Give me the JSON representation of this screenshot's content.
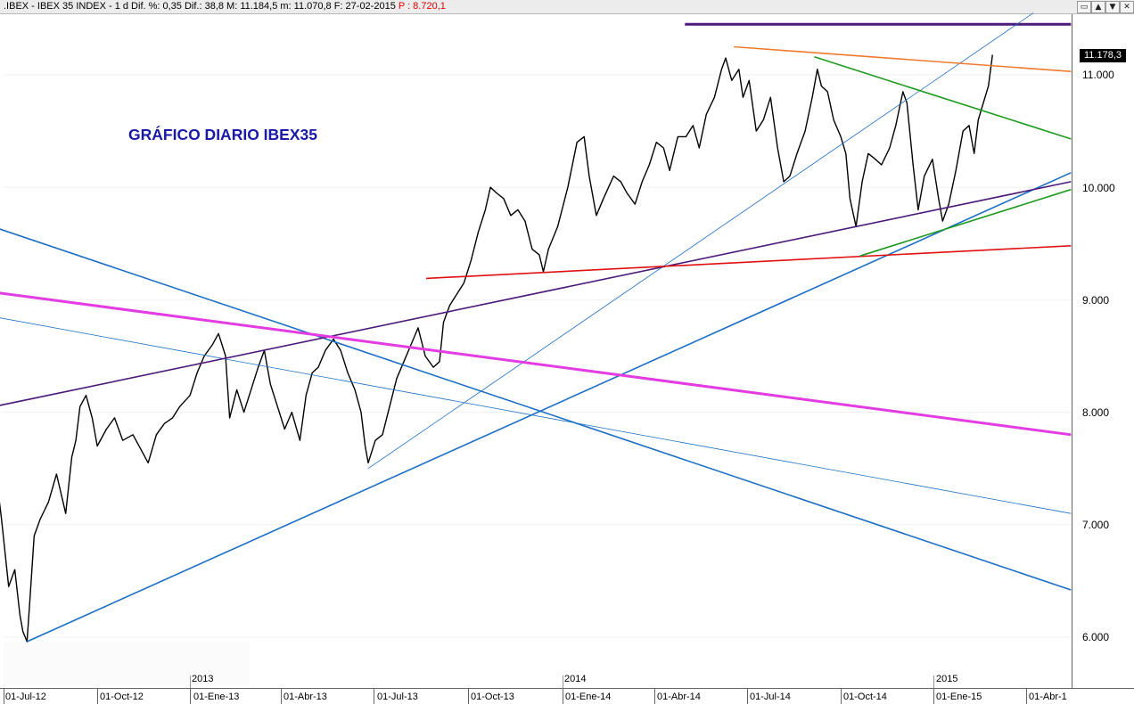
{
  "window": {
    "title": ".IBEX - IBEX 35 INDEX -  1 d Dif. %: 0,35  Dif.: 38,8  M: 11.184,5  m: 11.070,8  F: 27-02-2015",
    "title_extra": " P : 8.720,1",
    "buttons": [
      "▭",
      "▲",
      "▼",
      "✕"
    ]
  },
  "chart_data": {
    "type": "line",
    "title": "",
    "note": "GRÁFICO DIARIO IBEX35",
    "last_price": "11.178,3",
    "colors": {
      "price": "#000000",
      "blue": "#1c6fc4",
      "purple": "#4b1a7a",
      "magenta": "#e23ce2",
      "red": "#e01010",
      "green": "#1e9a1e",
      "orange": "#f07a30",
      "note": "#1a1aa8"
    },
    "y_ticks": [
      "11.000",
      "10.000",
      "9.000",
      "8.000",
      "7.000",
      "6.000"
    ],
    "x_ticks": [
      "01-Jul-12",
      "01-Oct-12",
      "01-Ene-13",
      "01-Abr-13",
      "01-Jul-13",
      "01-Oct-13",
      "01-Ene-14",
      "01-Abr-14",
      "01-Jul-14",
      "01-Oct-14",
      "01-Ene-15",
      "01-Abr-1"
    ],
    "year_labels": [
      "2013",
      "2014",
      "2015"
    ],
    "price_series": [
      [
        "2012-06-27",
        7200
      ],
      [
        "2012-06-29",
        7050
      ],
      [
        "2012-07-06",
        6450
      ],
      [
        "2012-07-12",
        6600
      ],
      [
        "2012-07-17",
        6200
      ],
      [
        "2012-07-20",
        6050
      ],
      [
        "2012-07-24",
        5960
      ],
      [
        "2012-07-27",
        6350
      ],
      [
        "2012-07-31",
        6900
      ],
      [
        "2012-08-06",
        7050
      ],
      [
        "2012-08-14",
        7200
      ],
      [
        "2012-08-22",
        7450
      ],
      [
        "2012-08-31",
        7100
      ],
      [
        "2012-09-06",
        7600
      ],
      [
        "2012-09-10",
        7750
      ],
      [
        "2012-09-14",
        8050
      ],
      [
        "2012-09-20",
        8150
      ],
      [
        "2012-09-26",
        7950
      ],
      [
        "2012-10-01",
        7700
      ],
      [
        "2012-10-10",
        7850
      ],
      [
        "2012-10-18",
        7950
      ],
      [
        "2012-10-26",
        7750
      ],
      [
        "2012-11-05",
        7800
      ],
      [
        "2012-11-14",
        7650
      ],
      [
        "2012-11-20",
        7550
      ],
      [
        "2012-11-28",
        7800
      ],
      [
        "2012-12-06",
        7900
      ],
      [
        "2012-12-14",
        7950
      ],
      [
        "2012-12-21",
        8050
      ],
      [
        "2012-12-31",
        8150
      ],
      [
        "2013-01-07",
        8350
      ],
      [
        "2013-01-14",
        8500
      ],
      [
        "2013-01-22",
        8600
      ],
      [
        "2013-01-28",
        8700
      ],
      [
        "2013-02-04",
        8500
      ],
      [
        "2013-02-08",
        7950
      ],
      [
        "2013-02-15",
        8200
      ],
      [
        "2013-02-22",
        8000
      ],
      [
        "2013-03-01",
        8200
      ],
      [
        "2013-03-08",
        8400
      ],
      [
        "2013-03-14",
        8550
      ],
      [
        "2013-03-20",
        8250
      ],
      [
        "2013-03-27",
        8050
      ],
      [
        "2013-04-03",
        7850
      ],
      [
        "2013-04-10",
        8000
      ],
      [
        "2013-04-18",
        7750
      ],
      [
        "2013-04-24",
        8150
      ],
      [
        "2013-04-30",
        8350
      ],
      [
        "2013-05-06",
        8400
      ],
      [
        "2013-05-13",
        8550
      ],
      [
        "2013-05-21",
        8650
      ],
      [
        "2013-05-28",
        8550
      ],
      [
        "2013-06-04",
        8350
      ],
      [
        "2013-06-11",
        8200
      ],
      [
        "2013-06-17",
        8000
      ],
      [
        "2013-06-21",
        7700
      ],
      [
        "2013-06-24",
        7550
      ],
      [
        "2013-07-01",
        7750
      ],
      [
        "2013-07-08",
        7800
      ],
      [
        "2013-07-15",
        8050
      ],
      [
        "2013-07-22",
        8300
      ],
      [
        "2013-07-29",
        8450
      ],
      [
        "2013-08-05",
        8600
      ],
      [
        "2013-08-12",
        8750
      ],
      [
        "2013-08-19",
        8500
      ],
      [
        "2013-08-27",
        8400
      ],
      [
        "2013-09-02",
        8450
      ],
      [
        "2013-09-06",
        8800
      ],
      [
        "2013-09-12",
        8950
      ],
      [
        "2013-09-19",
        9050
      ],
      [
        "2013-09-26",
        9150
      ],
      [
        "2013-10-03",
        9350
      ],
      [
        "2013-10-10",
        9600
      ],
      [
        "2013-10-17",
        9800
      ],
      [
        "2013-10-22",
        10000
      ],
      [
        "2013-10-28",
        9950
      ],
      [
        "2013-11-04",
        9900
      ],
      [
        "2013-11-11",
        9750
      ],
      [
        "2013-11-18",
        9800
      ],
      [
        "2013-11-25",
        9700
      ],
      [
        "2013-12-02",
        9450
      ],
      [
        "2013-12-09",
        9400
      ],
      [
        "2013-12-13",
        9250
      ],
      [
        "2013-12-18",
        9450
      ],
      [
        "2013-12-27",
        9650
      ],
      [
        "2014-01-06",
        10000
      ],
      [
        "2014-01-15",
        10400
      ],
      [
        "2014-01-22",
        10450
      ],
      [
        "2014-01-27",
        10100
      ],
      [
        "2014-02-03",
        9750
      ],
      [
        "2014-02-10",
        9900
      ],
      [
        "2014-02-20",
        10100
      ],
      [
        "2014-02-27",
        10050
      ],
      [
        "2014-03-05",
        9950
      ],
      [
        "2014-03-13",
        9850
      ],
      [
        "2014-03-20",
        10050
      ],
      [
        "2014-03-27",
        10200
      ],
      [
        "2014-04-03",
        10400
      ],
      [
        "2014-04-10",
        10350
      ],
      [
        "2014-04-16",
        10150
      ],
      [
        "2014-04-24",
        10450
      ],
      [
        "2014-05-02",
        10450
      ],
      [
        "2014-05-09",
        10550
      ],
      [
        "2014-05-15",
        10350
      ],
      [
        "2014-05-22",
        10650
      ],
      [
        "2014-05-30",
        10800
      ],
      [
        "2014-06-06",
        11050
      ],
      [
        "2014-06-10",
        11150
      ],
      [
        "2014-06-16",
        10950
      ],
      [
        "2014-06-23",
        11050
      ],
      [
        "2014-06-27",
        10800
      ],
      [
        "2014-07-03",
        10950
      ],
      [
        "2014-07-10",
        10500
      ],
      [
        "2014-07-17",
        10600
      ],
      [
        "2014-07-24",
        10800
      ],
      [
        "2014-07-31",
        10350
      ],
      [
        "2014-08-06",
        10050
      ],
      [
        "2014-08-12",
        10100
      ],
      [
        "2014-08-19",
        10300
      ],
      [
        "2014-08-27",
        10500
      ],
      [
        "2014-09-03",
        10800
      ],
      [
        "2014-09-08",
        11050
      ],
      [
        "2014-09-12",
        10900
      ],
      [
        "2014-09-18",
        10850
      ],
      [
        "2014-09-24",
        10600
      ],
      [
        "2014-10-01",
        10450
      ],
      [
        "2014-10-06",
        10300
      ],
      [
        "2014-10-10",
        9900
      ],
      [
        "2014-10-16",
        9650
      ],
      [
        "2014-10-22",
        10050
      ],
      [
        "2014-10-28",
        10300
      ],
      [
        "2014-11-04",
        10250
      ],
      [
        "2014-11-10",
        10200
      ],
      [
        "2014-11-18",
        10350
      ],
      [
        "2014-11-24",
        10550
      ],
      [
        "2014-12-01",
        10850
      ],
      [
        "2014-12-05",
        10750
      ],
      [
        "2014-12-11",
        10200
      ],
      [
        "2014-12-16",
        9800
      ],
      [
        "2014-12-22",
        10100
      ],
      [
        "2014-12-30",
        10250
      ],
      [
        "2015-01-05",
        9900
      ],
      [
        "2015-01-09",
        9700
      ],
      [
        "2015-01-15",
        9850
      ],
      [
        "2015-01-22",
        10150
      ],
      [
        "2015-01-29",
        10500
      ],
      [
        "2015-02-04",
        10550
      ],
      [
        "2015-02-09",
        10300
      ],
      [
        "2015-02-13",
        10600
      ],
      [
        "2015-02-18",
        10750
      ],
      [
        "2015-02-23",
        10900
      ],
      [
        "2015-02-27",
        11178
      ]
    ],
    "trendlines": [
      {
        "color": "purple",
        "width": 3,
        "from": [
          "2014-05-01",
          11450
        ],
        "to": [
          "2015-05-15",
          11450
        ]
      },
      {
        "color": "blue",
        "width": 0.8,
        "from": [
          "2013-06-24",
          7500
        ],
        "to": [
          "2015-04-08",
          11550
        ]
      },
      {
        "color": "blue",
        "width": 1.6,
        "from": [
          "2012-07-24",
          5960
        ],
        "to": [
          "2015-05-15",
          10130
        ]
      },
      {
        "color": "blue",
        "width": 1.6,
        "from": [
          "2012-06-27",
          9630
        ],
        "to": [
          "2015-05-15",
          6420
        ]
      },
      {
        "color": "blue",
        "width": 0.8,
        "from": [
          "2012-06-27",
          8840
        ],
        "to": [
          "2015-05-15",
          7100
        ]
      },
      {
        "color": "purple",
        "width": 1.6,
        "from": [
          "2012-06-27",
          8060
        ],
        "to": [
          "2015-05-15",
          10050
        ]
      },
      {
        "color": "magenta",
        "width": 3,
        "from": [
          "2012-06-27",
          9060
        ],
        "to": [
          "2015-05-15",
          7800
        ]
      },
      {
        "color": "red",
        "width": 1.6,
        "from": [
          "2013-08-20",
          9190
        ],
        "to": [
          "2015-05-15",
          9480
        ]
      },
      {
        "color": "green",
        "width": 1.6,
        "from": [
          "2014-10-20",
          9390
        ],
        "to": [
          "2015-05-15",
          9980
        ]
      },
      {
        "color": "green",
        "width": 1.6,
        "from": [
          "2014-09-05",
          11160
        ],
        "to": [
          "2015-05-15",
          10430
        ]
      },
      {
        "color": "orange",
        "width": 1.6,
        "from": [
          "2014-06-18",
          11250
        ],
        "to": [
          "2015-05-15",
          11030
        ]
      }
    ]
  }
}
